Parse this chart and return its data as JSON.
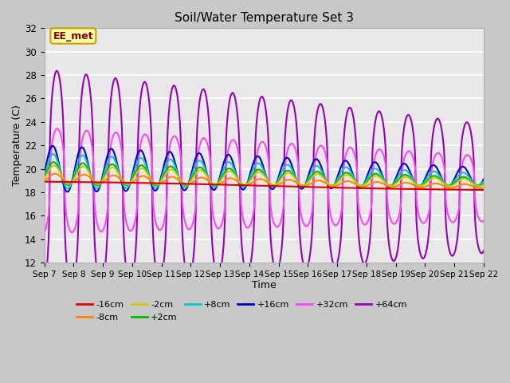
{
  "title": "Soil/Water Temperature Set 3",
  "xlabel": "Time",
  "ylabel": "Temperature (C)",
  "ylim": [
    12,
    32
  ],
  "yticks": [
    12,
    14,
    16,
    18,
    20,
    22,
    24,
    26,
    28,
    30,
    32
  ],
  "fig_bg_color": "#c8c8c8",
  "plot_bg_color": "#e8e8e8",
  "annotation_text": "EE_met",
  "annotation_bg": "#ffffaa",
  "annotation_border": "#c8a000",
  "annotation_text_color": "#880000",
  "grid_color": "#ffffff",
  "series": {
    "-16cm": {
      "color": "#dd0000",
      "lw": 1.5
    },
    "-8cm": {
      "color": "#ff8800",
      "lw": 1.5
    },
    "-2cm": {
      "color": "#cccc00",
      "lw": 1.5
    },
    "+2cm": {
      "color": "#00bb00",
      "lw": 1.5
    },
    "+8cm": {
      "color": "#00cccc",
      "lw": 1.5
    },
    "+16cm": {
      "color": "#0000cc",
      "lw": 1.5
    },
    "+32cm": {
      "color": "#ff44ff",
      "lw": 1.5
    },
    "+64cm": {
      "color": "#9900bb",
      "lw": 1.5
    }
  },
  "x_tick_labels": [
    "Sep 7",
    "Sep 8",
    "Sep 9",
    "Sep 10",
    "Sep 11",
    "Sep 12",
    "Sep 13",
    "Sep 14",
    "Sep 15",
    "Sep 16",
    "Sep 17",
    "Sep 18",
    "Sep 19",
    "Sep 20",
    "Sep 21",
    "Sep 22"
  ]
}
